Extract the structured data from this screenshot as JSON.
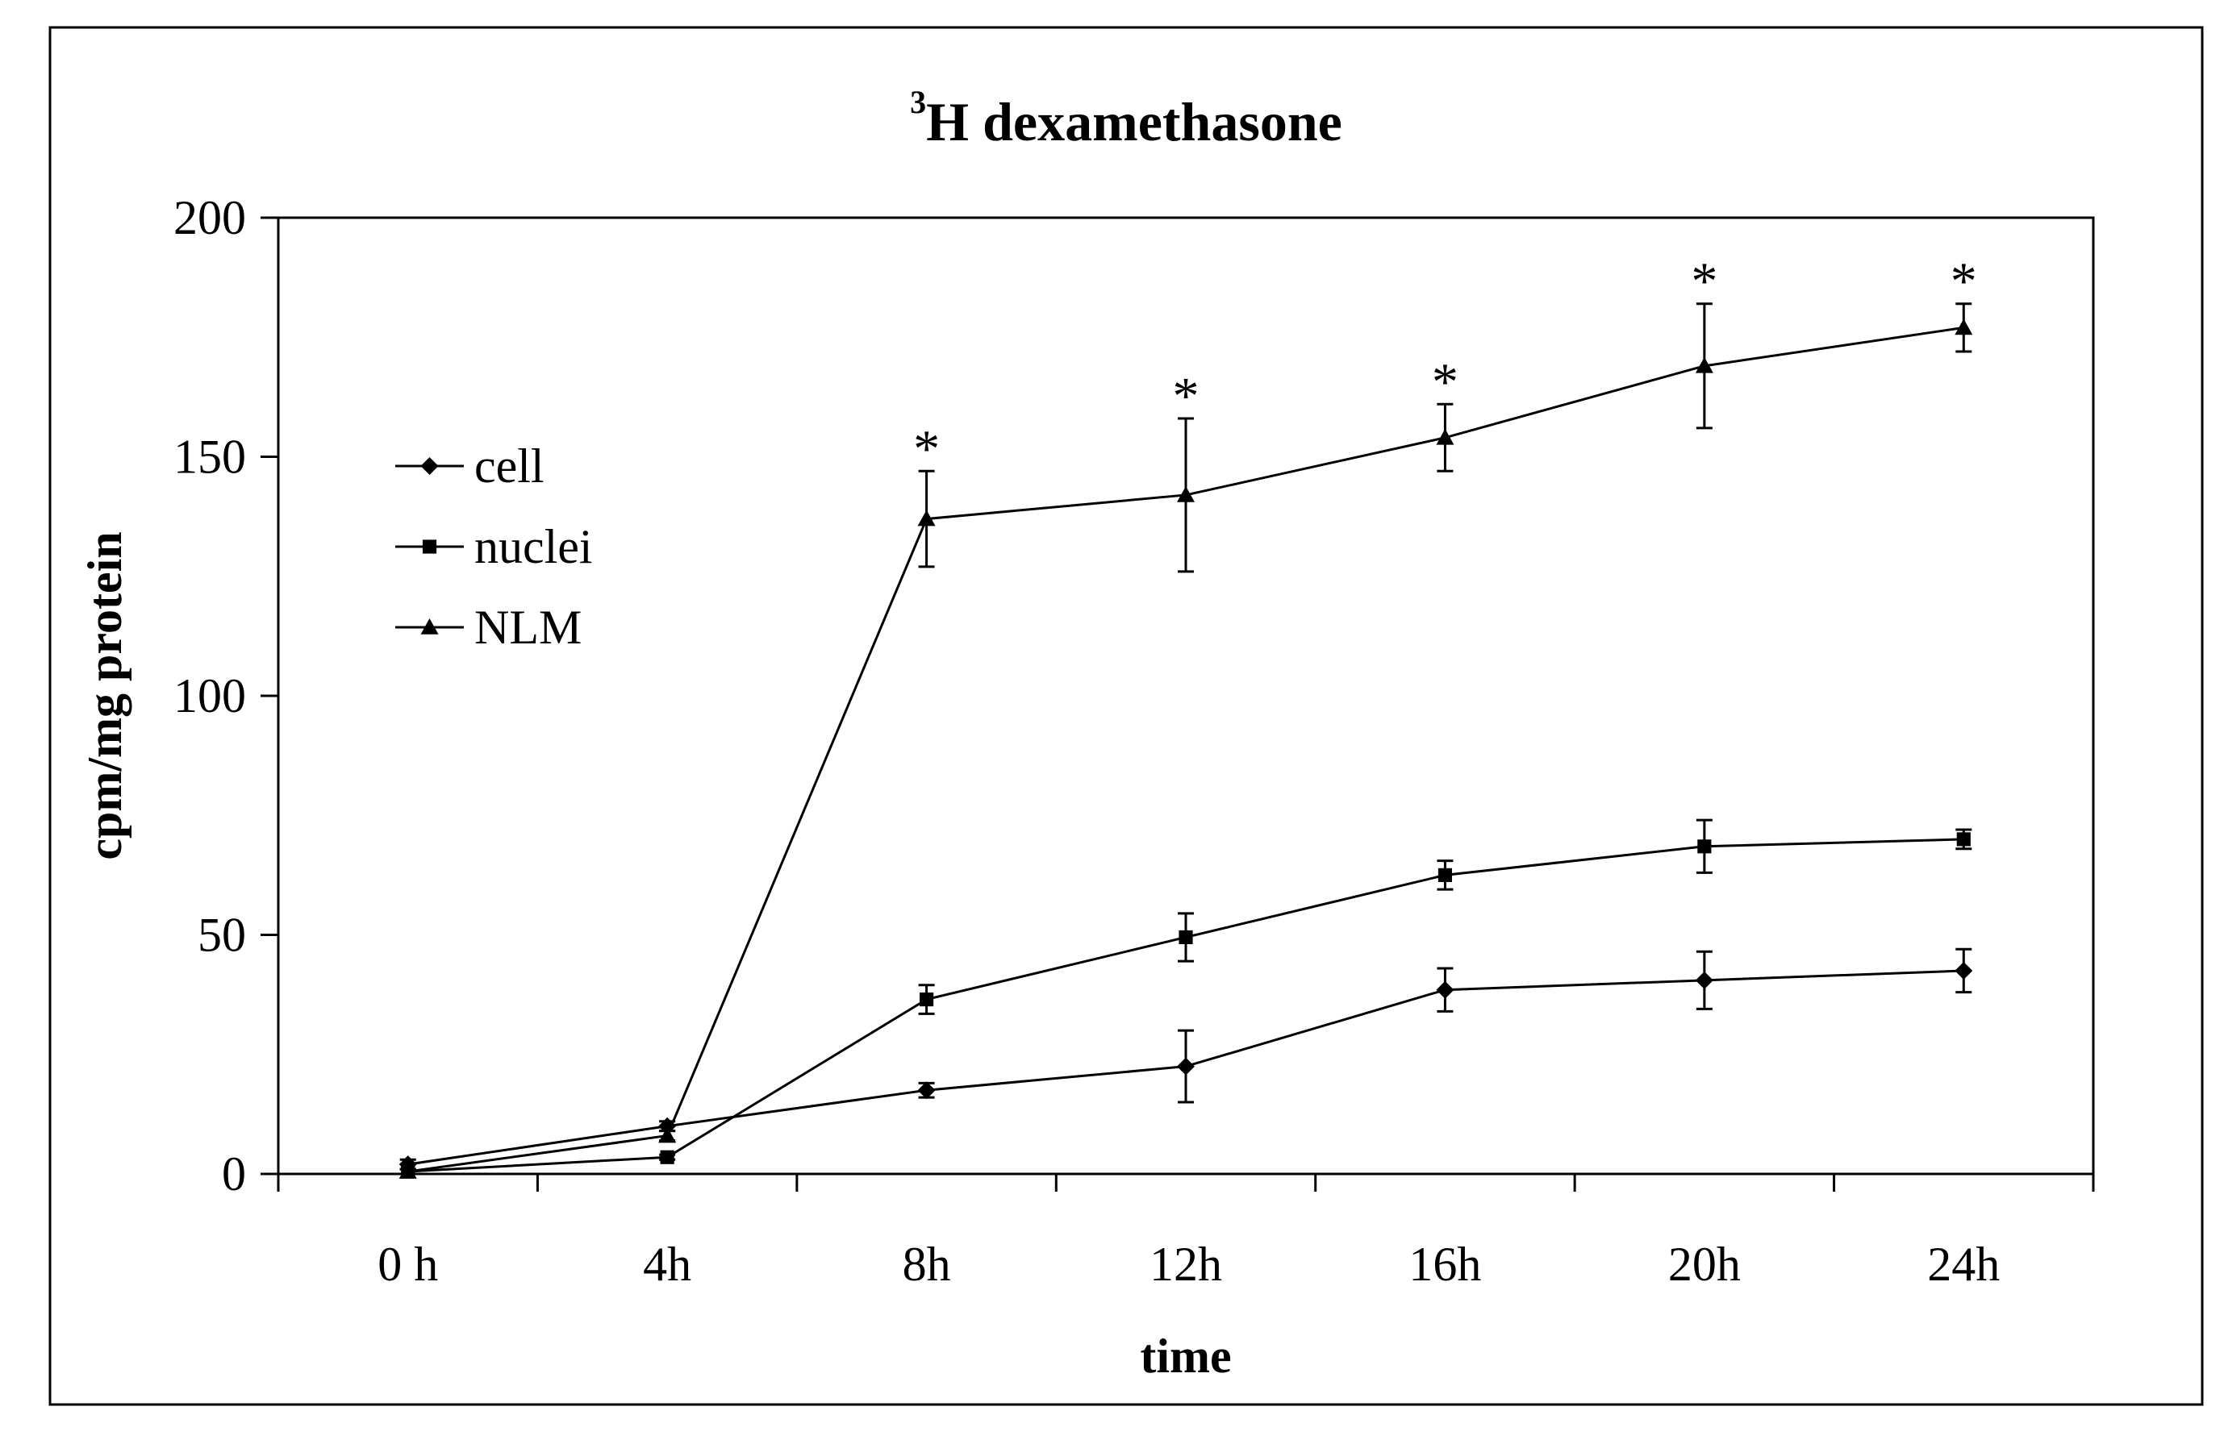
{
  "chart_data": {
    "type": "line",
    "title": {
      "superscript": "3",
      "text": "H dexamethasone"
    },
    "xlabel": "time",
    "ylabel": "cpm/mg protein",
    "ylim": [
      0,
      200
    ],
    "yticks": [
      0,
      50,
      100,
      150,
      200
    ],
    "categories": [
      "0 h",
      "4h",
      "8h",
      "12h",
      "16h",
      "20h",
      "24h"
    ],
    "grid": false,
    "legend_position": "upper-left",
    "series": [
      {
        "name": "cell",
        "marker": "diamond",
        "values": [
          2,
          10,
          17.5,
          22.5,
          38.5,
          40.5,
          42.5
        ],
        "errors": [
          1,
          1,
          1.5,
          7.5,
          4.5,
          6,
          4.5
        ]
      },
      {
        "name": "nuclei",
        "marker": "square",
        "values": [
          0.5,
          3.5,
          36.5,
          49.5,
          62.5,
          68.5,
          70
        ],
        "errors": [
          0.5,
          0.5,
          3,
          5,
          3,
          5.5,
          2
        ]
      },
      {
        "name": "NLM",
        "marker": "triangle",
        "values": [
          0.5,
          8,
          137,
          142,
          154,
          169,
          177
        ],
        "errors": [
          0.5,
          1,
          10,
          16,
          7,
          13,
          5
        ]
      }
    ],
    "significance": {
      "symbol": "*",
      "series": "NLM",
      "categories": [
        "8h",
        "12h",
        "16h",
        "20h",
        "24h"
      ]
    }
  }
}
